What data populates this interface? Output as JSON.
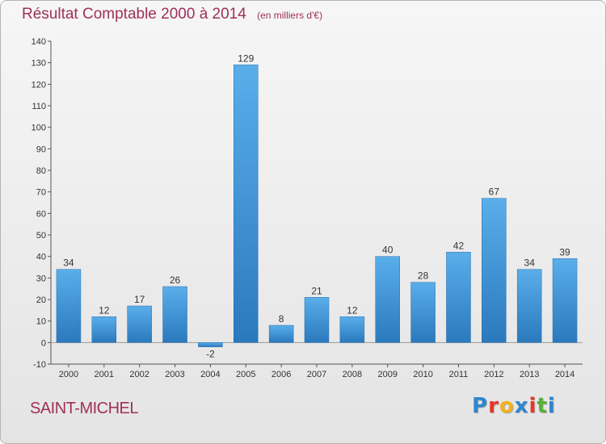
{
  "chart_data": {
    "type": "bar",
    "title": "Résultat Comptable 2000 à 2014",
    "subtitle": "(en milliers d'€)",
    "categories": [
      "2000",
      "2001",
      "2002",
      "2003",
      "2004",
      "2005",
      "2006",
      "2007",
      "2008",
      "2009",
      "2010",
      "2011",
      "2012",
      "2013",
      "2014"
    ],
    "values": [
      34,
      12,
      17,
      26,
      -2,
      129,
      8,
      21,
      12,
      40,
      28,
      42,
      67,
      34,
      39
    ],
    "ylim": [
      -10,
      140
    ],
    "yticks": [
      -10,
      0,
      10,
      20,
      30,
      40,
      50,
      60,
      70,
      80,
      90,
      100,
      110,
      120,
      130,
      140
    ],
    "xlabel": "",
    "ylabel": "",
    "grid": false,
    "bar_color": "#3f94d6"
  },
  "footer": {
    "commune": "SAINT-MICHEL",
    "logo_letters": [
      {
        "ch": "P",
        "color": "#2e86d0"
      },
      {
        "ch": "r",
        "color": "#e8352a"
      },
      {
        "ch": "o",
        "color": "#f2b21a"
      },
      {
        "ch": "x",
        "color": "#2e86d0"
      },
      {
        "ch": "i",
        "color": "#e8352a"
      },
      {
        "ch": "t",
        "color": "#57b135"
      },
      {
        "ch": "i",
        "color": "#2e86d0"
      }
    ]
  }
}
